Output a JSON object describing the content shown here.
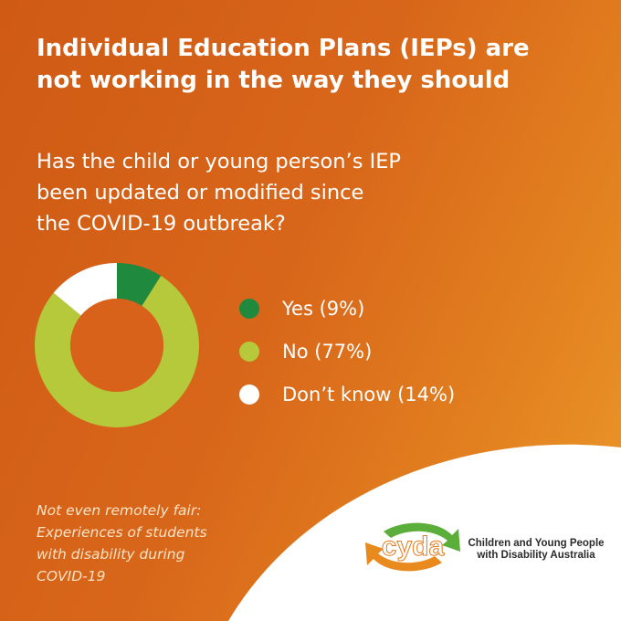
{
  "headline": {
    "line1": "Individual Education Plans (IEPs) are",
    "line2": "not working in the way they should"
  },
  "question": {
    "line1": "Has the child or young person’s IEP",
    "line2": "been updated or modified since",
    "line3": "the COVID-19 outbreak?"
  },
  "chart_data": {
    "type": "pie",
    "categories": [
      "Yes",
      "No",
      "Don’t know"
    ],
    "values": [
      9,
      77,
      14
    ],
    "colors": [
      "#1f8a3e",
      "#b5c93a",
      "#ffffff"
    ],
    "legend_labels": [
      "Yes (9%)",
      "No (77%)",
      "Don’t know (14%)"
    ],
    "legend_position": "right"
  },
  "source": {
    "line1": "Not even remotely fair:",
    "line2": "Experiences of students",
    "line3": "with disability during",
    "line4": "COVID-19"
  },
  "logo": {
    "text": "cyda",
    "org_line1": "Children and Young People",
    "org_line2": "with Disability Australia"
  }
}
